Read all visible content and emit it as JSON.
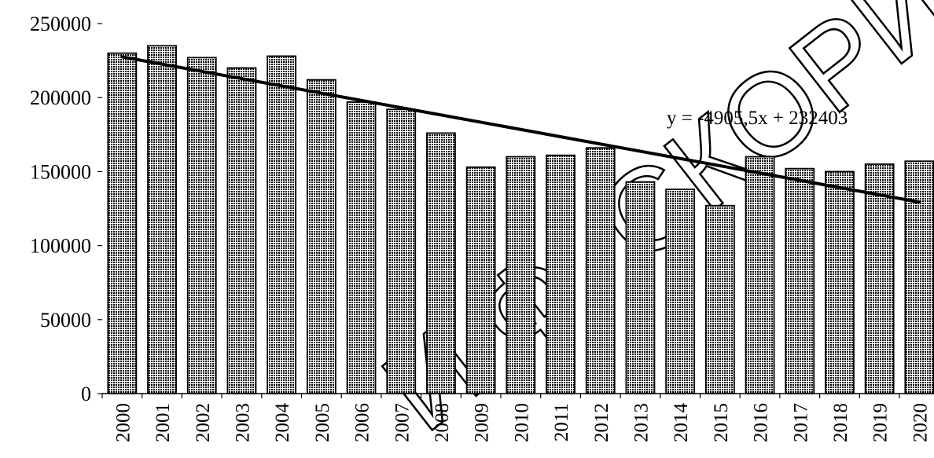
{
  "chart_data": {
    "type": "bar",
    "categories": [
      "2000",
      "2001",
      "2002",
      "2003",
      "2004",
      "2005",
      "2006",
      "2007",
      "2008",
      "2009",
      "2010",
      "2011",
      "2012",
      "2013",
      "2014",
      "2015",
      "2016",
      "2017",
      "2018",
      "2019",
      "2020"
    ],
    "values": [
      230000,
      235000,
      227000,
      220000,
      228000,
      212000,
      197000,
      192000,
      176000,
      153000,
      160000,
      161000,
      166000,
      143000,
      138000,
      127000,
      160000,
      152000,
      150000,
      155000,
      157000
    ],
    "ylim": [
      0,
      250000
    ],
    "yticks": [
      "0",
      "50000",
      "100000",
      "150000",
      "200000",
      "250000"
    ],
    "trendline": {
      "type": "linear",
      "slope": -4905.5,
      "intercept": 232403,
      "equation_label": "y = -4905,5x + 232403"
    },
    "grid": false,
    "legend": "none",
    "bar_fill": "dotted-pattern",
    "colors": {
      "bar_dots": "#000000",
      "bar_background": "#ffffff",
      "axis": "#000000"
    },
    "watermark": "И Ф. СКОРИН"
  }
}
